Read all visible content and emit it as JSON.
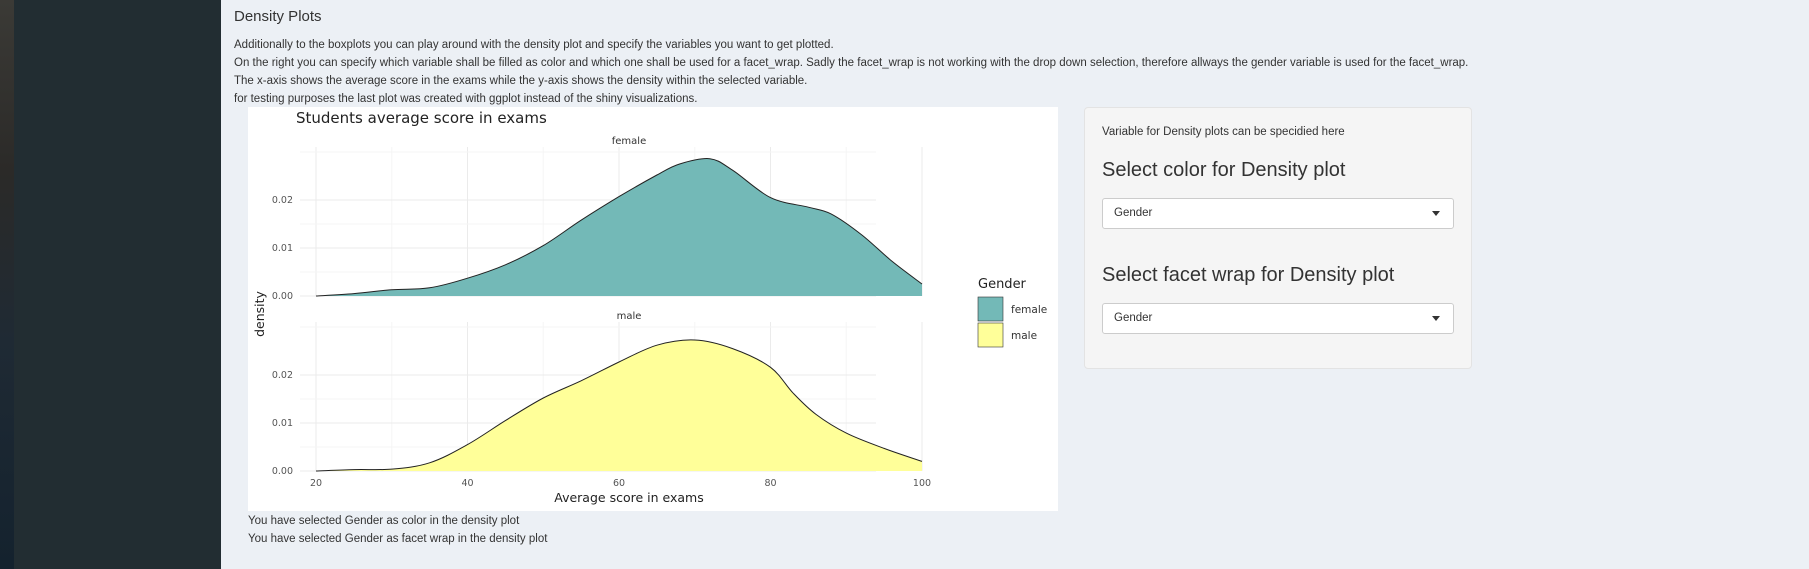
{
  "page": {
    "section_title": "Density Plots",
    "description": [
      "Additionally to the boxplots you can play around with the density plot and specify the variables you want to get plotted.",
      "On the right you can specify which variable shall be filled as color and which one shall be used for a facet_wrap. Sadly the facet_wrap is not working with the drop down selection, therefore allways the gender variable is used for the facet_wrap.",
      "The x-axis shows the average score in the exams while the y-axis shows the density within the selected variable.",
      "for testing purposes the last plot was created with ggplot instead of the shiny visualizations."
    ],
    "status": [
      "You have selected Gender as color in the density plot",
      "You have selected Gender as facet wrap in the density plot"
    ]
  },
  "controls": {
    "note": "Variable for Density plots can be specidied here",
    "color_label": "Select color for Density plot",
    "color_value": "Gender",
    "facet_label": "Select facet wrap for Density plot",
    "facet_value": "Gender"
  },
  "chart_data": {
    "type": "area",
    "title": "Students average score in exams",
    "xlabel": "Average score in exams",
    "ylabel": "density",
    "xlim": [
      20,
      100
    ],
    "ylim": [
      0,
      0.03
    ],
    "x_ticks": [
      20,
      40,
      60,
      80,
      100
    ],
    "y_ticks": [
      0.0,
      0.01,
      0.02
    ],
    "y_tick_labels": [
      "0.00",
      "0.01",
      "0.02"
    ],
    "grid": true,
    "legend": {
      "title": "Gender",
      "position": "right"
    },
    "series": [
      {
        "name": "female",
        "color": "#73b9b7",
        "x": [
          20,
          25,
          30,
          35,
          40,
          45,
          50,
          55,
          60,
          65,
          68,
          72,
          75,
          80,
          85,
          88,
          92,
          96,
          100
        ],
        "y": [
          0.0,
          0.0005,
          0.0013,
          0.0017,
          0.0037,
          0.0065,
          0.0105,
          0.0158,
          0.0207,
          0.0252,
          0.0275,
          0.0286,
          0.0262,
          0.0205,
          0.0185,
          0.0171,
          0.0128,
          0.0073,
          0.0025
        ]
      },
      {
        "name": "male",
        "color": "#ffff99",
        "x": [
          20,
          25,
          30,
          35,
          40,
          45,
          50,
          55,
          60,
          65,
          70,
          75,
          80,
          83,
          86,
          90,
          95,
          100
        ],
        "y": [
          0.0,
          0.0003,
          0.0004,
          0.0017,
          0.0055,
          0.0105,
          0.0152,
          0.0188,
          0.0227,
          0.0262,
          0.0273,
          0.0255,
          0.0216,
          0.0162,
          0.0118,
          0.0079,
          0.0047,
          0.002
        ]
      }
    ]
  }
}
